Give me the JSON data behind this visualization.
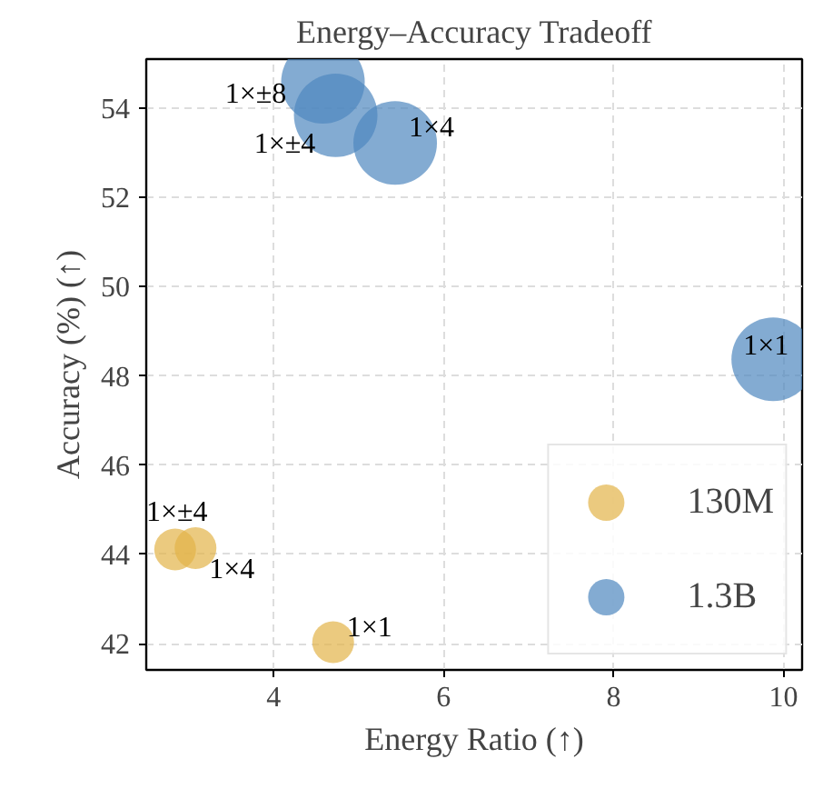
{
  "chart_data": {
    "type": "bubble",
    "title": "Energy–Accuracy Tradeoff",
    "xlabel": "Energy Ratio (↑)",
    "ylabel": "Accuracy (%) (↑)",
    "xlim": [
      2.5,
      10.22
    ],
    "ylim": [
      41.41,
      55.1
    ],
    "xticks": [
      4,
      6,
      8,
      10
    ],
    "yticks": [
      42,
      44,
      46,
      48,
      50,
      52,
      54
    ],
    "grid": true,
    "legend": "bottom right",
    "series": [
      {
        "name": "130M",
        "color": "#e3b448",
        "x": [
          2.84,
          3.08,
          4.7
        ],
        "values": [
          44.11,
          44.14,
          42.03
        ],
        "sizes": [
          0.25,
          0.25,
          0.25
        ]
      },
      {
        "name": "1.3B",
        "color": "#4e88bf",
        "x": [
          4.58,
          4.73,
          5.43,
          9.88
        ],
        "values": [
          54.59,
          53.84,
          53.22,
          48.37
        ],
        "sizes": [
          1,
          1,
          1,
          1
        ]
      }
    ],
    "annotations": [
      {
        "text": "1×±4",
        "x": 2.84,
        "y": 44.11
      },
      {
        "text": "1×4",
        "x": 3.08,
        "y": 44.14
      },
      {
        "text": "1×1",
        "x": 4.7,
        "y": 42.03
      },
      {
        "text": "1×±8",
        "x": 4.58,
        "y": 54.59
      },
      {
        "text": "1×±4",
        "x": 4.73,
        "y": 53.84
      },
      {
        "text": "1×4",
        "x": 5.43,
        "y": 53.22
      },
      {
        "text": "1×1",
        "x": 9.88,
        "y": 48.37
      }
    ]
  }
}
